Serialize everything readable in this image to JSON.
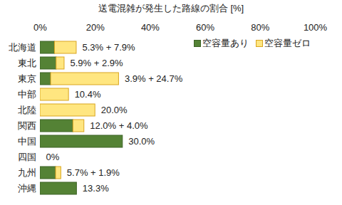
{
  "chart_data": {
    "type": "bar",
    "orientation": "horizontal",
    "stacked": true,
    "title": "送電混雑が発生した路線の割合 [%]",
    "categories": [
      "北海道",
      "東北",
      "東京",
      "中部",
      "北陸",
      "関西",
      "中国",
      "四国",
      "九州",
      "沖縄"
    ],
    "series": [
      {
        "name": "空容量あり",
        "color": "#548235",
        "values": [
          5.3,
          5.9,
          3.9,
          0,
          0,
          12.0,
          30.0,
          0,
          5.7,
          13.3
        ]
      },
      {
        "name": "空容量ゼロ",
        "color": "#ffe680",
        "values": [
          7.9,
          2.9,
          24.7,
          10.4,
          20.0,
          4.0,
          0,
          0,
          1.9,
          0
        ]
      }
    ],
    "data_labels": true,
    "value_labels": [
      "5.3% + 7.9%",
      "5.9% + 2.9%",
      "3.9% + 24.7%",
      "10.4%",
      "20.0%",
      "12.0% + 4.0%",
      "30.0%",
      "0%",
      "5.7% + 1.9%",
      "13.3%"
    ],
    "xlim": [
      0,
      100
    ],
    "xticks": [
      {
        "value": 0,
        "label": "0%"
      },
      {
        "value": 20,
        "label": "20%"
      },
      {
        "value": 40,
        "label": "40%"
      },
      {
        "value": 60,
        "label": "60%"
      },
      {
        "value": 80,
        "label": "80%"
      },
      {
        "value": 100,
        "label": "100%"
      }
    ],
    "grid": false,
    "legend": "top-right"
  }
}
